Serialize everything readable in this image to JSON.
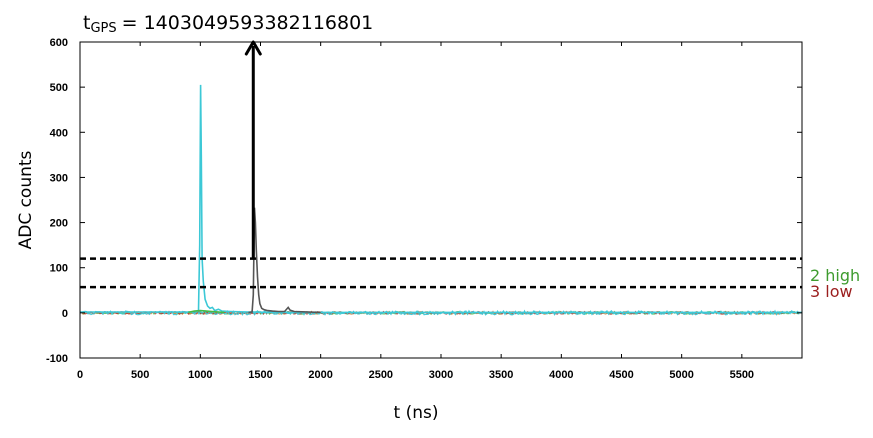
{
  "chart_data": {
    "type": "line",
    "title_prefix": "t",
    "title_subscript": "GPS",
    "title_value": "= 1403049593382116801",
    "xlabel": "t (ns)",
    "ylabel": "ADC counts",
    "xlim": [
      0,
      6000
    ],
    "ylim": [
      -100,
      600
    ],
    "x_ticks": [
      0,
      500,
      1000,
      1500,
      2000,
      2500,
      3000,
      3500,
      4000,
      4500,
      5000,
      5500
    ],
    "y_ticks": [
      -100,
      0,
      100,
      200,
      300,
      400,
      500,
      600
    ],
    "grid": false,
    "series": [
      {
        "color": "#3cc8d6",
        "points": [
          [
            0,
            2
          ],
          [
            950,
            2
          ],
          [
            985,
            5
          ],
          [
            995,
            150
          ],
          [
            1002,
            505
          ],
          [
            1008,
            350
          ],
          [
            1015,
            120
          ],
          [
            1025,
            70
          ],
          [
            1040,
            30
          ],
          [
            1060,
            15
          ],
          [
            1080,
            10
          ],
          [
            1100,
            12
          ],
          [
            1120,
            5
          ],
          [
            1150,
            8
          ],
          [
            1180,
            4
          ],
          [
            1250,
            3
          ],
          [
            1400,
            2
          ],
          [
            1600,
            1
          ],
          [
            6000,
            1
          ]
        ]
      },
      {
        "color": "#555555",
        "points": [
          [
            1400,
            1
          ],
          [
            1430,
            2
          ],
          [
            1440,
            40
          ],
          [
            1450,
            233
          ],
          [
            1458,
            200
          ],
          [
            1465,
            140
          ],
          [
            1475,
            80
          ],
          [
            1485,
            40
          ],
          [
            1495,
            20
          ],
          [
            1510,
            10
          ],
          [
            1530,
            7
          ],
          [
            1560,
            5
          ],
          [
            1600,
            4
          ],
          [
            1650,
            3
          ],
          [
            1700,
            3
          ],
          [
            1730,
            12
          ],
          [
            1745,
            6
          ],
          [
            1780,
            3
          ],
          [
            2000,
            1
          ]
        ]
      },
      {
        "color": "#44bb44",
        "points": [
          [
            900,
            1
          ],
          [
            950,
            4
          ],
          [
            1000,
            5
          ],
          [
            1050,
            4
          ],
          [
            1100,
            3
          ],
          [
            1150,
            2
          ],
          [
            1200,
            1
          ]
        ]
      }
    ],
    "thresholds": [
      {
        "value": 120,
        "label": "2 high",
        "color": "#3e9b2e"
      },
      {
        "value": 57,
        "label": "3 low",
        "color": "#9b1e1e"
      }
    ],
    "arrow": {
      "x": 1440,
      "y_start": 120,
      "y_end": 600
    },
    "line_color": "#000000"
  }
}
